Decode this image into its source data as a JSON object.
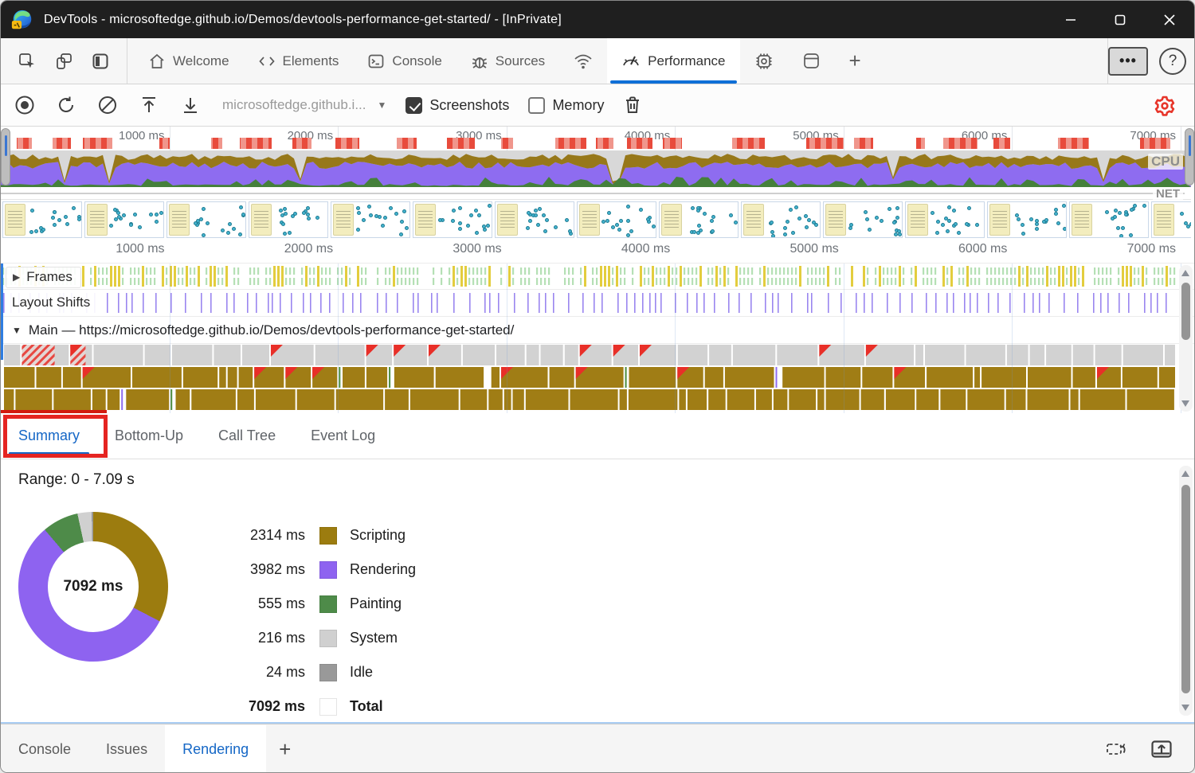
{
  "window": {
    "title": "DevTools - microsoftedge.github.io/Demos/devtools-performance-get-started/ - [InPrivate]"
  },
  "glyphs": {
    "collapsed": "▶",
    "expanded": "▼",
    "dropdown": "▼",
    "plus": "+",
    "more": "•••",
    "help": "?"
  },
  "main_toolbar": {
    "tabs": [
      {
        "label": "Welcome",
        "icon": "home"
      },
      {
        "label": "Elements",
        "icon": "code"
      },
      {
        "label": "Console",
        "icon": "console"
      },
      {
        "label": "Sources",
        "icon": "bug"
      },
      {
        "label": "",
        "icon": "network-wifi"
      },
      {
        "label": "Performance",
        "icon": "gauge",
        "active": true
      },
      {
        "label": "",
        "icon": "memory-chip"
      },
      {
        "label": "",
        "icon": "application-window"
      },
      {
        "label": "",
        "icon": "plus"
      }
    ]
  },
  "perf_toolbar": {
    "url_selector_value": "microsoftedge.github.i...",
    "screenshots": {
      "label": "Screenshots",
      "checked": true
    },
    "memory": {
      "label": "Memory",
      "checked": false
    }
  },
  "overview": {
    "cpu_label": "CPU",
    "net_label": "NET",
    "ruler_ticks": [
      "1000 ms",
      "2000 ms",
      "3000 ms",
      "4000 ms",
      "5000 ms",
      "6000 ms",
      "7000 ms"
    ],
    "total_ms": 7090
  },
  "tracks": {
    "frames_label": "Frames",
    "layout_shifts_label": "Layout Shifts",
    "main_label": "Main — https://microsoftedge.github.io/Demos/devtools-performance-get-started/"
  },
  "detail_tabs": {
    "tabs": [
      "Summary",
      "Bottom-Up",
      "Call Tree",
      "Event Log"
    ],
    "active": "Summary"
  },
  "summary": {
    "range_label": "Range: 0 - 7.09 s",
    "donut_center": "7092 ms"
  },
  "chart_data": {
    "type": "pie",
    "title": "Summary of time spent by activity, range 0 - 7.09 s",
    "unit": "ms",
    "donut_center_total": 7092,
    "series": [
      {
        "name": "Scripting",
        "value": 2314,
        "color": "#9c7c0f"
      },
      {
        "name": "Rendering",
        "value": 3982,
        "color": "#8e63f0"
      },
      {
        "name": "Painting",
        "value": 555,
        "color": "#4e8b49"
      },
      {
        "name": "System",
        "value": 216,
        "color": "#d0d0d0"
      },
      {
        "name": "Idle",
        "value": 24,
        "color": "#999999"
      }
    ],
    "total": {
      "label": "Total",
      "value": 7092
    },
    "legend_position": "right"
  },
  "drawer": {
    "tabs": [
      "Console",
      "Issues",
      "Rendering"
    ],
    "active": "Rendering"
  },
  "colors": {
    "accent_blue": "#1567c6",
    "tab_underline_blue": "#0f6fd7",
    "annotation_red": "#e52421",
    "gear_red": "#e7352a",
    "ruler_task_red_dark": "#e84b3c",
    "ruler_task_red_light": "#f0968c",
    "cpu_scripting": "#97781a",
    "cpu_rendering": "#8e6cf0",
    "cpu_painting": "#45803b",
    "frames_green": "#b5e0b5",
    "frames_yellow": "#e3cd3e",
    "layout_shift_purple": "#9a86ef",
    "flame_task_gray": "#d2d2d2",
    "flame_scripting": "#a07d15",
    "flame_triangle_red": "#e82f28",
    "flame_line_purple": "#8e6cf0",
    "flame_line_green": "#4c8b3f",
    "filmstrip_dot": "#45b3cf",
    "filmstrip_note": "#f3edbe"
  }
}
